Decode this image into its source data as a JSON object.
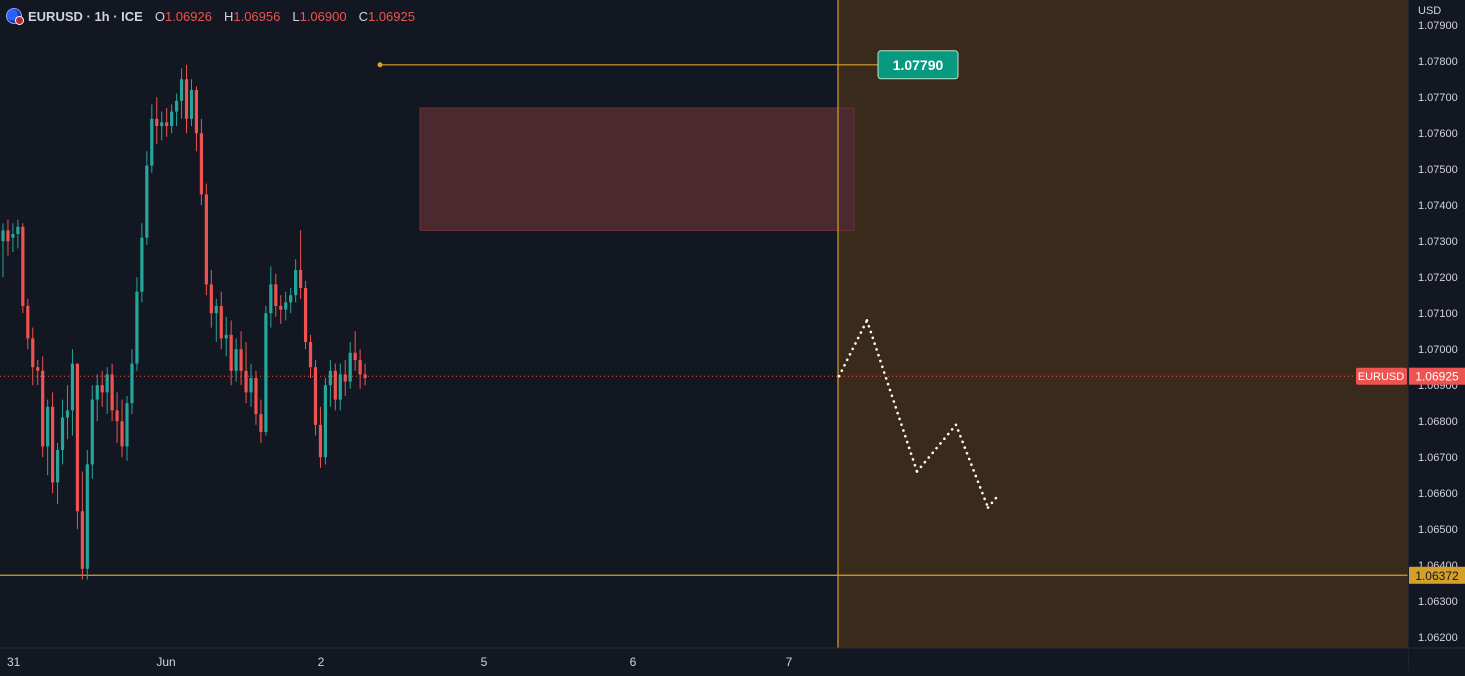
{
  "legend": {
    "title": "EURUSD · 1h · ICE",
    "open_label": "O",
    "open": "1.06926",
    "high_label": "H",
    "high": "1.06956",
    "low_label": "L",
    "low": "1.06900",
    "close_label": "C",
    "close": "1.06925"
  },
  "axis": {
    "currency": "USD",
    "price_labels": [
      "1.07900",
      "1.07800",
      "1.07700",
      "1.07600",
      "1.07500",
      "1.07400",
      "1.07300",
      "1.07200",
      "1.07100",
      "1.07000",
      "1.06900",
      "1.06800",
      "1.06700",
      "1.06600",
      "1.06500",
      "1.06400",
      "1.06300",
      "1.06200"
    ],
    "time_labels": [
      "31",
      "Jun",
      "2",
      "5",
      "6",
      "7"
    ]
  },
  "markers": {
    "high_callout": "1.07790",
    "symbol_tag": "EURUSD",
    "last_price": "1.06925",
    "support_price": "1.06372"
  },
  "colors": {
    "background": "#131722",
    "up": "#26a69a",
    "down": "#ef5350",
    "level_line": "#d4a02a",
    "projection_zone": "#3a2a1c",
    "supply_zone": "#4a2a2f",
    "callout": "#089981"
  },
  "chart_data": {
    "type": "candlestick",
    "symbol": "EURUSD",
    "interval": "1h",
    "exchange": "ICE",
    "ylim": [
      1.0617,
      1.0797
    ],
    "levels": {
      "swing_high": 1.0779,
      "support": 1.06372,
      "last": 1.06925
    },
    "supply_zone": {
      "top": 1.0767,
      "bottom": 1.0733
    },
    "candles": [
      [
        1.073,
        1.0735,
        1.072,
        1.0733
      ],
      [
        1.0733,
        1.0736,
        1.0726,
        1.073
      ],
      [
        1.0731,
        1.0735,
        1.0727,
        1.0732
      ],
      [
        1.0732,
        1.0736,
        1.0728,
        1.0734
      ],
      [
        1.0734,
        1.0735,
        1.071,
        1.0712
      ],
      [
        1.0712,
        1.0714,
        1.07,
        1.0703
      ],
      [
        1.0703,
        1.0706,
        1.069,
        1.0695
      ],
      [
        1.0695,
        1.0697,
        1.069,
        1.0694
      ],
      [
        1.0694,
        1.0698,
        1.067,
        1.0673
      ],
      [
        1.0673,
        1.0686,
        1.0665,
        1.0684
      ],
      [
        1.0684,
        1.0688,
        1.066,
        1.0663
      ],
      [
        1.0663,
        1.0674,
        1.0657,
        1.0672
      ],
      [
        1.0672,
        1.0686,
        1.0668,
        1.0681
      ],
      [
        1.0681,
        1.069,
        1.0675,
        1.0683
      ],
      [
        1.0683,
        1.07,
        1.0676,
        1.0696
      ],
      [
        1.0696,
        1.0696,
        1.065,
        1.0655
      ],
      [
        1.0655,
        1.0666,
        1.0636,
        1.0639
      ],
      [
        1.0639,
        1.0672,
        1.0636,
        1.0668
      ],
      [
        1.0668,
        1.069,
        1.0664,
        1.0686
      ],
      [
        1.0686,
        1.0693,
        1.068,
        1.069
      ],
      [
        1.069,
        1.0694,
        1.0684,
        1.0688
      ],
      [
        1.0688,
        1.0695,
        1.0682,
        1.0693
      ],
      [
        1.0693,
        1.0696,
        1.068,
        1.0683
      ],
      [
        1.0683,
        1.0688,
        1.0674,
        1.068
      ],
      [
        1.068,
        1.0686,
        1.067,
        1.0673
      ],
      [
        1.0673,
        1.0687,
        1.0669,
        1.0685
      ],
      [
        1.0685,
        1.07,
        1.0682,
        1.0696
      ],
      [
        1.0696,
        1.072,
        1.0694,
        1.0716
      ],
      [
        1.0716,
        1.0735,
        1.0713,
        1.0731
      ],
      [
        1.0731,
        1.0755,
        1.0729,
        1.0751
      ],
      [
        1.0751,
        1.0768,
        1.0749,
        1.0764
      ],
      [
        1.0764,
        1.077,
        1.0757,
        1.0762
      ],
      [
        1.0762,
        1.0766,
        1.0758,
        1.0763
      ],
      [
        1.0763,
        1.0767,
        1.0759,
        1.0762
      ],
      [
        1.0762,
        1.0768,
        1.076,
        1.0766
      ],
      [
        1.0766,
        1.0771,
        1.0762,
        1.0769
      ],
      [
        1.0769,
        1.0778,
        1.0764,
        1.0775
      ],
      [
        1.0775,
        1.0779,
        1.076,
        1.0764
      ],
      [
        1.0764,
        1.0775,
        1.0762,
        1.0772
      ],
      [
        1.0772,
        1.0773,
        1.0755,
        1.076
      ],
      [
        1.076,
        1.0764,
        1.074,
        1.0743
      ],
      [
        1.0743,
        1.0746,
        1.0715,
        1.0718
      ],
      [
        1.0718,
        1.0722,
        1.0706,
        1.071
      ],
      [
        1.071,
        1.0714,
        1.0702,
        1.0712
      ],
      [
        1.0712,
        1.0716,
        1.07,
        1.0703
      ],
      [
        1.0703,
        1.0709,
        1.0698,
        1.0704
      ],
      [
        1.0704,
        1.0708,
        1.069,
        1.0694
      ],
      [
        1.0694,
        1.0703,
        1.0691,
        1.07
      ],
      [
        1.07,
        1.0705,
        1.069,
        1.0694
      ],
      [
        1.0694,
        1.0702,
        1.0685,
        1.0688
      ],
      [
        1.0688,
        1.0696,
        1.0684,
        1.0692
      ],
      [
        1.0692,
        1.0694,
        1.0679,
        1.0682
      ],
      [
        1.0682,
        1.0686,
        1.0674,
        1.0677
      ],
      [
        1.0677,
        1.0712,
        1.0676,
        1.071
      ],
      [
        1.071,
        1.0723,
        1.0706,
        1.0718
      ],
      [
        1.0718,
        1.0721,
        1.0709,
        1.0712
      ],
      [
        1.0712,
        1.0715,
        1.0707,
        1.0711
      ],
      [
        1.0711,
        1.0716,
        1.0708,
        1.0713
      ],
      [
        1.0713,
        1.0717,
        1.071,
        1.0715
      ],
      [
        1.0715,
        1.0725,
        1.0713,
        1.0722
      ],
      [
        1.0722,
        1.0733,
        1.0714,
        1.0717
      ],
      [
        1.0717,
        1.0719,
        1.07,
        1.0702
      ],
      [
        1.0702,
        1.0704,
        1.0692,
        1.0695
      ],
      [
        1.0695,
        1.0697,
        1.0676,
        1.0679
      ],
      [
        1.0679,
        1.0684,
        1.0667,
        1.067
      ],
      [
        1.067,
        1.0692,
        1.0668,
        1.069
      ],
      [
        1.069,
        1.0697,
        1.0684,
        1.0694
      ],
      [
        1.0694,
        1.0696,
        1.0683,
        1.0686
      ],
      [
        1.0686,
        1.0696,
        1.0683,
        1.0693
      ],
      [
        1.0693,
        1.0697,
        1.0687,
        1.0691
      ],
      [
        1.0691,
        1.0702,
        1.0689,
        1.0699
      ],
      [
        1.0699,
        1.0705,
        1.0694,
        1.0697
      ],
      [
        1.0697,
        1.07,
        1.0689,
        1.0693
      ],
      [
        1.0693,
        1.0696,
        1.069,
        1.0692
      ]
    ],
    "projection": [
      [
        1.06925,
        1.0708
      ],
      [
        1.0708,
        1.0666
      ],
      [
        1.0666,
        1.0679
      ],
      [
        1.0679,
        1.0656
      ],
      [
        1.0656,
        1.0659
      ]
    ]
  }
}
